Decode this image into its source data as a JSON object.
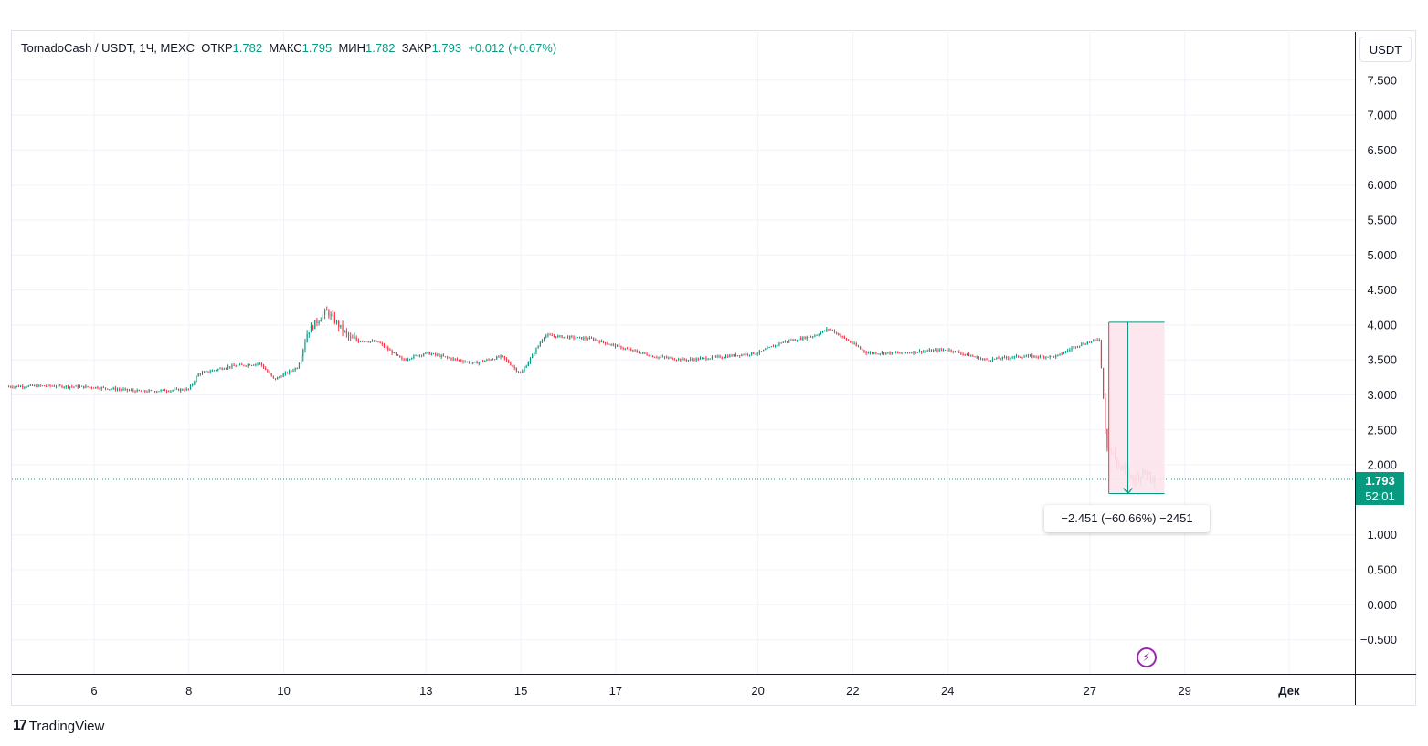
{
  "legend": {
    "symbol": "TornadoCash / USDT, 1Ч, MEXC",
    "open_label": "ОТКР",
    "open_value": "1.782",
    "high_label": "МАКС",
    "high_value": "1.795",
    "low_label": "МИН",
    "low_value": "1.782",
    "close_label": "ЗАКР",
    "close_value": "1.793",
    "change": "+0.012 (+0.67%)"
  },
  "currency_button": "USDT",
  "price_tag": {
    "price": "1.793",
    "countdown": "52:01"
  },
  "measure_label": "−2.451 (−60.66%) −2451",
  "brand": {
    "mark": "17",
    "name": "TradingView"
  },
  "icons": {
    "flash": "flash-icon"
  },
  "colors": {
    "up": "#089981",
    "down": "#f23645",
    "measure_fill": "#fce4ec",
    "flash": "#9c27b0"
  },
  "chart_data": {
    "type": "candlestick",
    "y_ticks": [
      "7.500",
      "7.000",
      "6.500",
      "6.000",
      "5.500",
      "5.000",
      "4.500",
      "4.000",
      "3.500",
      "3.000",
      "2.500",
      "2.000",
      "1.000",
      "0.500",
      "0.000",
      "−0.500"
    ],
    "y_tick_values": [
      7.5,
      7.0,
      6.5,
      6.0,
      5.5,
      5.0,
      4.5,
      4.0,
      3.5,
      3.0,
      2.5,
      2.0,
      1.0,
      0.5,
      0.0,
      -0.5
    ],
    "x_ticks": [
      {
        "label": "6",
        "day": 6
      },
      {
        "label": "8",
        "day": 8
      },
      {
        "label": "10",
        "day": 10
      },
      {
        "label": "13",
        "day": 13
      },
      {
        "label": "15",
        "day": 15
      },
      {
        "label": "17",
        "day": 17
      },
      {
        "label": "20",
        "day": 20
      },
      {
        "label": "22",
        "day": 22
      },
      {
        "label": "24",
        "day": 24
      },
      {
        "label": "27",
        "day": 27
      },
      {
        "label": "29",
        "day": 29
      },
      {
        "label": "Дек",
        "day": 31.2
      }
    ],
    "grid": true,
    "last_price": 1.793,
    "series_points": [
      [
        4.2,
        3.12
      ],
      [
        5,
        3.13
      ],
      [
        6,
        3.11
      ],
      [
        7,
        3.05
      ],
      [
        8,
        3.08
      ],
      [
        8.2,
        3.3
      ],
      [
        8.8,
        3.4
      ],
      [
        9.5,
        3.45
      ],
      [
        9.8,
        3.22
      ],
      [
        10.3,
        3.4
      ],
      [
        10.5,
        3.9
      ],
      [
        10.9,
        4.2
      ],
      [
        11.4,
        3.8
      ],
      [
        12,
        3.75
      ],
      [
        12.5,
        3.5
      ],
      [
        13,
        3.6
      ],
      [
        14,
        3.45
      ],
      [
        14.6,
        3.55
      ],
      [
        15,
        3.3
      ],
      [
        15.5,
        3.85
      ],
      [
        16.5,
        3.8
      ],
      [
        17,
        3.7
      ],
      [
        17.8,
        3.55
      ],
      [
        18.5,
        3.5
      ],
      [
        19.3,
        3.55
      ],
      [
        20,
        3.6
      ],
      [
        20.5,
        3.75
      ],
      [
        21.2,
        3.85
      ],
      [
        21.5,
        3.95
      ],
      [
        22.3,
        3.6
      ],
      [
        23,
        3.6
      ],
      [
        24,
        3.65
      ],
      [
        24.8,
        3.5
      ],
      [
        25.5,
        3.55
      ],
      [
        26.3,
        3.55
      ],
      [
        26.7,
        3.7
      ],
      [
        27.2,
        3.8
      ],
      [
        27.35,
        2.3
      ],
      [
        27.6,
        2.0
      ],
      [
        27.9,
        1.8
      ],
      [
        28.2,
        1.9
      ],
      [
        28.4,
        1.79
      ]
    ],
    "measure": {
      "from_price": 4.04,
      "to_price": 1.59,
      "from_day": 27.4,
      "to_day": 28.4,
      "change": "−2.451",
      "percent": "−60.66%",
      "ticks": "−2451"
    }
  }
}
